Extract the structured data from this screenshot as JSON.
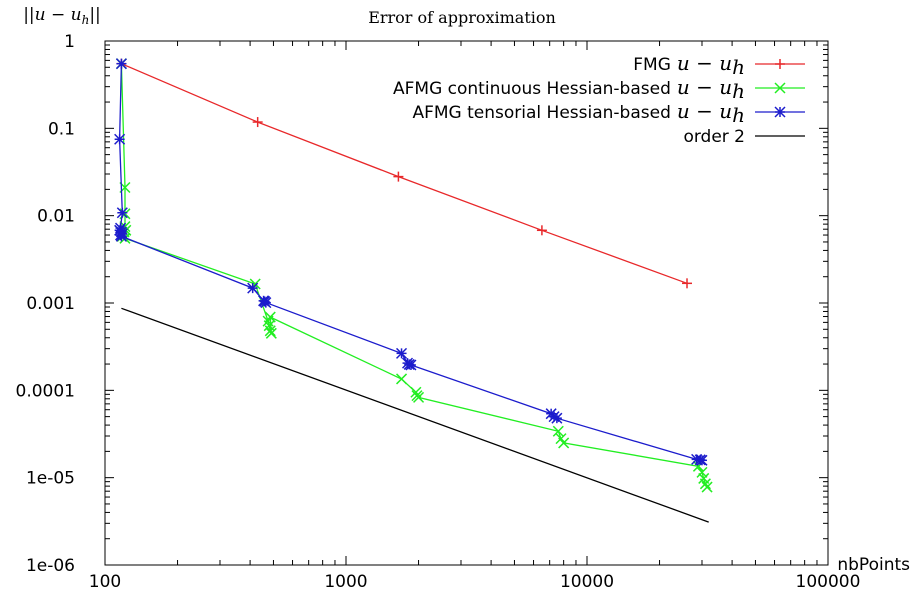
{
  "chart_data": {
    "type": "line",
    "title": "Error of approximation",
    "ylabel": "||u − u",
    "ylabel_sub": "h",
    "ylabel_end": "||",
    "xlabel": "nbPoints",
    "x_scale": "log",
    "y_scale": "log",
    "xlim": [
      100,
      100000
    ],
    "ylim": [
      1e-06,
      1
    ],
    "x_ticks": [
      "100",
      "1000",
      "10000",
      "100000"
    ],
    "y_ticks": [
      "1",
      "0.1",
      "0.01",
      "0.001",
      "0.0001",
      "1e-05",
      "1e-06"
    ],
    "grid": false,
    "legend_position": "top-right",
    "series": [
      {
        "name": "FMG",
        "math": "u − u",
        "math_sub": "h",
        "color": "#e8282a",
        "marker": "plus",
        "x": [
          117,
          430,
          1650,
          6500,
          26000
        ],
        "y": [
          0.55,
          0.118,
          0.028,
          0.0068,
          0.00168
        ]
      },
      {
        "name": "AFMG continuous Hessian-based",
        "math": "u − u",
        "math_sub": "h",
        "color": "#22ee22",
        "marker": "cross",
        "x": [
          117,
          121,
          121,
          121,
          122,
          120,
          118,
          121,
          420,
          475,
          480,
          485,
          490,
          485,
          1700,
          1950,
          1970,
          2000,
          7600,
          7800,
          8000,
          29000,
          30000,
          30500,
          31000,
          31500
        ],
        "y": [
          0.55,
          0.021,
          0.0105,
          0.0075,
          0.0068,
          0.0065,
          0.0058,
          0.0055,
          0.00165,
          0.00062,
          0.00055,
          0.00048,
          0.00045,
          0.00069,
          0.000135,
          9.5e-05,
          8.7e-05,
          8.3e-05,
          3.4e-05,
          2.8e-05,
          2.5e-05,
          1.35e-05,
          1.15e-05,
          9.8e-06,
          8.5e-06,
          7.8e-06
        ]
      },
      {
        "name": "AFMG tensorial Hessian-based",
        "math": "u − u",
        "math_sub": "h",
        "color": "#1c1ccc",
        "marker": "star",
        "x": [
          117,
          115,
          118,
          116,
          115,
          117,
          118,
          116,
          117,
          410,
          455,
          460,
          465,
          1700,
          1800,
          1830,
          1860,
          7100,
          7300,
          7500,
          28500,
          29500,
          30000
        ],
        "y": [
          0.55,
          0.075,
          0.0108,
          0.0072,
          0.0068,
          0.0065,
          0.0062,
          0.006,
          0.0058,
          0.00148,
          0.00106,
          0.00104,
          0.00101,
          0.000265,
          0.000205,
          0.000198,
          0.000195,
          5.4e-05,
          5e-05,
          4.8e-05,
          1.62e-05,
          1.6e-05,
          1.58e-05
        ]
      },
      {
        "name": "order 2",
        "color": "#000000",
        "marker": "none",
        "x": [
          117,
          32000
        ],
        "y": [
          0.00087,
          3.1e-06
        ]
      }
    ]
  }
}
